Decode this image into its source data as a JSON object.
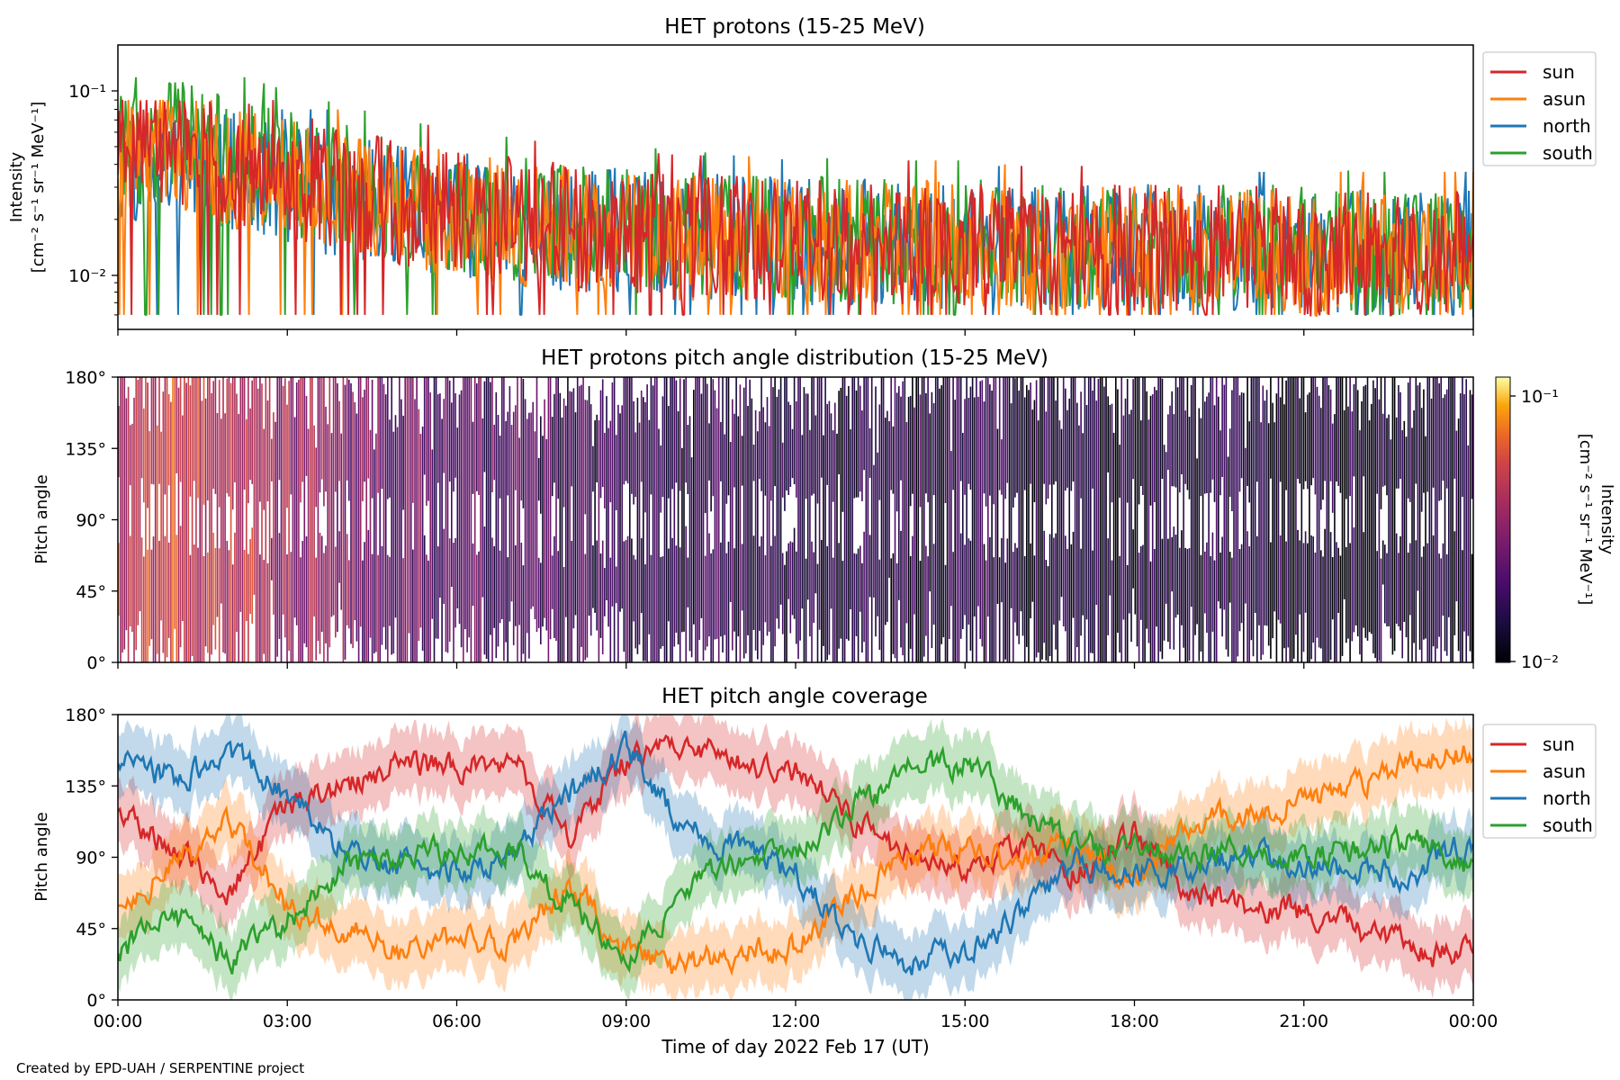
{
  "footer": "Created by EPD-UAH / SERPENTINE project",
  "colors": {
    "sun": "#d62728",
    "asun": "#ff7f0e",
    "north": "#1f77b4",
    "south": "#2ca02c"
  },
  "chart_data": [
    {
      "type": "line",
      "title": "HET protons (15-25 MeV)",
      "ylabel_line1": "Intensity",
      "ylabel_line2": "[cm⁻² s⁻¹ sr⁻¹ MeV⁻¹]",
      "yscale": "log",
      "ylim": [
        0.005,
        0.18
      ],
      "yticks": [
        "10⁻¹",
        "10⁻²"
      ],
      "ytick_values": [
        0.1,
        0.01
      ],
      "xlim": [
        "00:00",
        "24:00"
      ],
      "legend_position": "outside-right",
      "series": [
        {
          "name": "sun",
          "color": "#d62728",
          "typical_range": [
            0.006,
            0.09
          ],
          "hourly_median": [
            0.045,
            0.05,
            0.042,
            0.035,
            0.03,
            0.025,
            0.022,
            0.02,
            0.018,
            0.017,
            0.016,
            0.016,
            0.015,
            0.015,
            0.015,
            0.015,
            0.014,
            0.014,
            0.014,
            0.014,
            0.014,
            0.013,
            0.013,
            0.013
          ]
        },
        {
          "name": "asun",
          "color": "#ff7f0e",
          "typical_range": [
            0.006,
            0.09
          ],
          "hourly_median": [
            0.045,
            0.05,
            0.04,
            0.033,
            0.028,
            0.024,
            0.021,
            0.019,
            0.018,
            0.017,
            0.016,
            0.016,
            0.015,
            0.015,
            0.015,
            0.015,
            0.014,
            0.014,
            0.014,
            0.014,
            0.014,
            0.013,
            0.013,
            0.013
          ]
        },
        {
          "name": "north",
          "color": "#1f77b4",
          "typical_range": [
            0.006,
            0.08
          ],
          "hourly_median": [
            0.04,
            0.045,
            0.038,
            0.032,
            0.027,
            0.023,
            0.021,
            0.019,
            0.018,
            0.017,
            0.016,
            0.016,
            0.015,
            0.015,
            0.015,
            0.014,
            0.014,
            0.014,
            0.014,
            0.014,
            0.013,
            0.013,
            0.013,
            0.013
          ]
        },
        {
          "name": "south",
          "color": "#2ca02c",
          "typical_range": [
            0.006,
            0.12
          ],
          "hourly_median": [
            0.05,
            0.055,
            0.045,
            0.036,
            0.03,
            0.025,
            0.022,
            0.02,
            0.019,
            0.018,
            0.017,
            0.016,
            0.016,
            0.015,
            0.015,
            0.015,
            0.015,
            0.014,
            0.014,
            0.014,
            0.014,
            0.014,
            0.013,
            0.013
          ]
        }
      ]
    },
    {
      "type": "heatmap",
      "title": "HET protons pitch angle distribution (15-25 MeV)",
      "ylabel": "Pitch angle",
      "ylim": [
        0,
        180
      ],
      "yticks": [
        "0°",
        "45°",
        "90°",
        "135°",
        "180°"
      ],
      "ytick_values": [
        0,
        45,
        90,
        135,
        180
      ],
      "xlim": [
        "00:00",
        "24:00"
      ],
      "colormap": "inferno",
      "color_scale": "log",
      "color_range": [
        0.01,
        0.12
      ],
      "colorbar_label_line1": "Intensity",
      "colorbar_label_line2": "[cm⁻² s⁻¹ sr⁻¹ MeV⁻¹]",
      "colorbar_ticks": [
        "10⁻¹",
        "10⁻²"
      ],
      "colorbar_tick_values": [
        0.1,
        0.01
      ],
      "hourly_median_intensity": [
        0.05,
        0.055,
        0.045,
        0.036,
        0.03,
        0.025,
        0.022,
        0.02,
        0.018,
        0.017,
        0.016,
        0.016,
        0.015,
        0.015,
        0.015,
        0.015,
        0.014,
        0.014,
        0.014,
        0.014,
        0.014,
        0.013,
        0.013,
        0.013
      ]
    },
    {
      "type": "line",
      "title": "HET pitch angle coverage",
      "ylabel": "Pitch angle",
      "xlabel": "Time of day 2022 Feb 17 (UT)",
      "ylim": [
        0,
        180
      ],
      "yticks": [
        "0°",
        "45°",
        "90°",
        "135°",
        "180°"
      ],
      "ytick_values": [
        0,
        45,
        90,
        135,
        180
      ],
      "xticks": [
        "00:00",
        "03:00",
        "06:00",
        "09:00",
        "12:00",
        "15:00",
        "18:00",
        "21:00",
        "00:00"
      ],
      "xlim": [
        "00:00",
        "24:00"
      ],
      "legend_position": "outside-right",
      "band_halfwidth_deg": 20,
      "series": [
        {
          "name": "sun",
          "color": "#d62728",
          "x_hours": [
            0,
            1,
            2,
            3,
            4,
            5,
            6,
            7,
            8,
            9,
            10,
            11,
            12,
            13,
            14,
            15,
            16,
            17,
            18,
            19,
            20,
            21,
            22,
            23,
            24
          ],
          "values": [
            120,
            95,
            70,
            120,
            135,
            150,
            145,
            150,
            105,
            150,
            160,
            150,
            145,
            115,
            90,
            85,
            95,
            80,
            105,
            70,
            60,
            55,
            45,
            30,
            30
          ]
        },
        {
          "name": "asun",
          "color": "#ff7f0e",
          "x_hours": [
            0,
            1,
            2,
            3,
            4,
            5,
            6,
            7,
            8,
            9,
            10,
            11,
            12,
            13,
            14,
            15,
            16,
            17,
            18,
            19,
            20,
            21,
            22,
            23,
            24
          ],
          "values": [
            60,
            85,
            110,
            60,
            45,
            30,
            40,
            35,
            75,
            30,
            20,
            30,
            35,
            65,
            90,
            95,
            85,
            100,
            75,
            110,
            120,
            125,
            135,
            150,
            155
          ]
        },
        {
          "name": "north",
          "color": "#1f77b4",
          "x_hours": [
            0,
            1,
            2,
            3,
            4,
            5,
            6,
            7,
            8,
            9,
            10,
            11,
            12,
            13,
            14,
            15,
            16,
            17,
            18,
            19,
            20,
            21,
            22,
            23,
            24
          ],
          "values": [
            150,
            140,
            155,
            130,
            95,
            85,
            80,
            90,
            130,
            160,
            110,
            95,
            80,
            40,
            25,
            30,
            55,
            85,
            80,
            85,
            90,
            85,
            80,
            80,
            100
          ]
        },
        {
          "name": "south",
          "color": "#2ca02c",
          "x_hours": [
            0,
            1,
            2,
            3,
            4,
            5,
            6,
            7,
            8,
            9,
            10,
            11,
            12,
            13,
            14,
            15,
            16,
            17,
            18,
            19,
            20,
            21,
            22,
            23,
            24
          ],
          "values": [
            30,
            55,
            25,
            50,
            85,
            90,
            95,
            95,
            60,
            25,
            70,
            90,
            95,
            120,
            145,
            150,
            120,
            95,
            95,
            90,
            95,
            90,
            95,
            100,
            80
          ]
        }
      ]
    }
  ]
}
